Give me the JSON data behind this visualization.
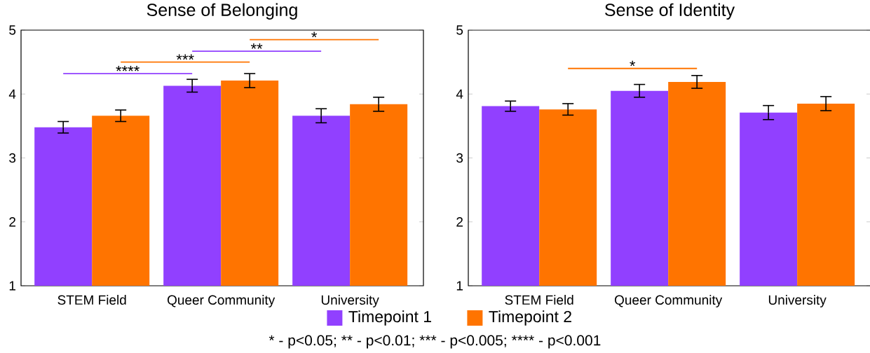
{
  "chart_data": [
    {
      "type": "bar",
      "title": "Sense of Belonging",
      "categories": [
        "STEM Field",
        "Queer Community",
        "University"
      ],
      "ylim": [
        1,
        5
      ],
      "yticks": [
        1,
        2,
        3,
        4,
        5
      ],
      "legend": "bottom",
      "series": [
        {
          "name": "Timepoint 1",
          "color": "#9140ff",
          "values": [
            3.48,
            4.13,
            3.66
          ],
          "errors": [
            0.09,
            0.1,
            0.11
          ]
        },
        {
          "name": "Timepoint 2",
          "color": "#ff7400",
          "values": [
            3.66,
            4.21,
            3.84
          ],
          "errors": [
            0.09,
            0.11,
            0.11
          ]
        }
      ],
      "annotations": [
        "****",
        "***",
        "**",
        "*",
        "* - p<0.05;",
        "** - p<0.01;",
        "*** - p<0.005;",
        "**** - p<0.001"
      ]
    },
    {
      "type": "bar",
      "title": "Sense of Identity",
      "categories": [
        "STEM Field",
        "Queer Community",
        "University"
      ],
      "ylim": [
        1,
        5
      ],
      "yticks": [
        1,
        2,
        3,
        4,
        5
      ],
      "series": [
        {
          "color": "#9140ff",
          "values": [
            3.81,
            4.05,
            3.71
          ],
          "errors": [
            0.08,
            0.1,
            0.11
          ]
        },
        {
          "color": "#ff7400",
          "values": [
            3.76,
            4.19,
            3.85
          ],
          "errors": [
            0.09,
            0.1,
            0.11
          ]
        }
      ],
      "annotations": [
        "*"
      ]
    }
  ]
}
